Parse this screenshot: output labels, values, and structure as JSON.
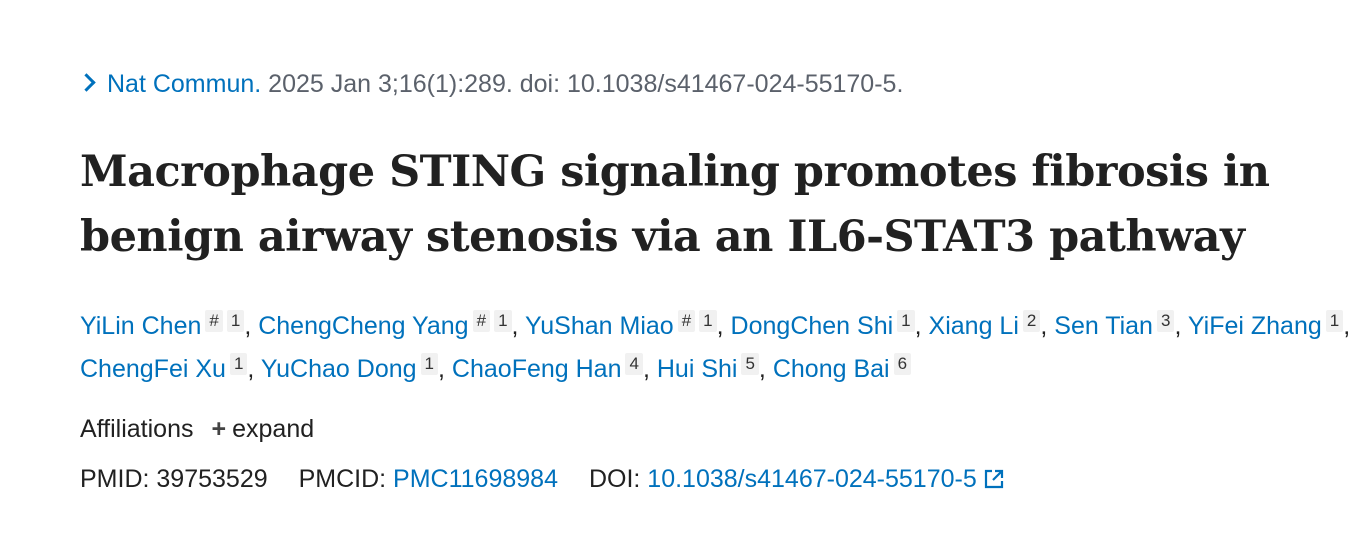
{
  "citation": {
    "journal": "Nat Commun.",
    "details": "2025 Jan 3;16(1):289. doi: 10.1038/s41467-024-55170-5."
  },
  "title": "Macrophage STING signaling promotes fibrosis in benign airway stenosis via an IL6-STAT3 pathway",
  "authors": [
    {
      "name": "YiLin Chen",
      "marks": [
        "#",
        "1"
      ]
    },
    {
      "name": "ChengCheng Yang",
      "marks": [
        "#",
        "1"
      ]
    },
    {
      "name": "YuShan Miao",
      "marks": [
        "#",
        "1"
      ]
    },
    {
      "name": "DongChen Shi",
      "marks": [
        "1"
      ]
    },
    {
      "name": "Xiang Li",
      "marks": [
        "2"
      ]
    },
    {
      "name": "Sen Tian",
      "marks": [
        "3"
      ]
    },
    {
      "name": "YiFei Zhang",
      "marks": [
        "1"
      ]
    },
    {
      "name": "ChengFei Xu",
      "marks": [
        "1"
      ]
    },
    {
      "name": "YuChao Dong",
      "marks": [
        "1"
      ]
    },
    {
      "name": "ChaoFeng Han",
      "marks": [
        "4"
      ]
    },
    {
      "name": "Hui Shi",
      "marks": [
        "5"
      ]
    },
    {
      "name": "Chong Bai",
      "marks": [
        "6"
      ]
    }
  ],
  "affiliations": {
    "label": "Affiliations",
    "expand": "expand"
  },
  "ids": {
    "pmid_label": "PMID:",
    "pmid": "39753529",
    "pmcid_label": "PMCID:",
    "pmcid": "PMC11698984",
    "doi_label": "DOI:",
    "doi": "10.1038/s41467-024-55170-5"
  },
  "colors": {
    "link": "#0071bc",
    "text": "#212121",
    "muted": "#5b616b"
  }
}
